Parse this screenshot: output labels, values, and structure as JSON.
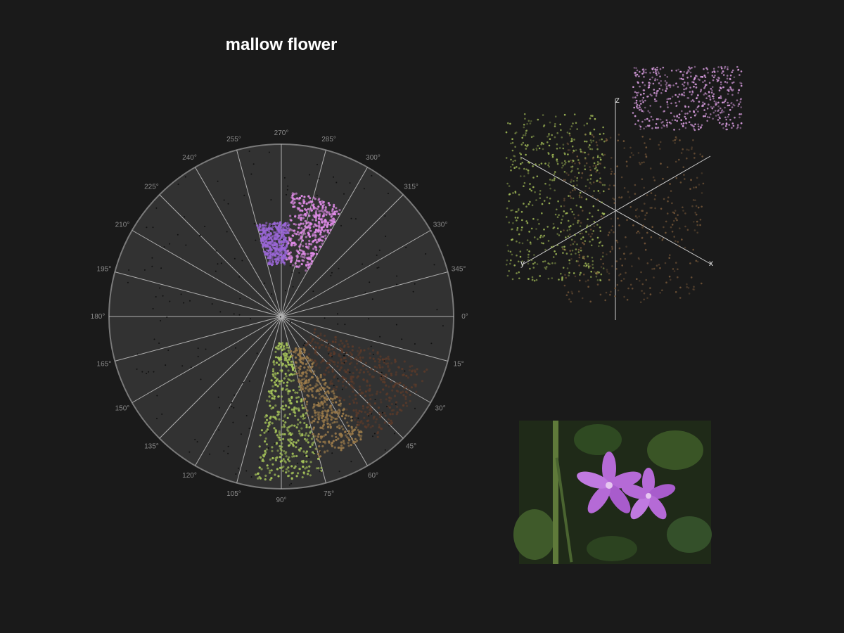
{
  "title": "mallow flower",
  "chart_data": [
    {
      "type": "scatter",
      "subtype": "polar-hue",
      "title": "mallow flower",
      "angle_ticks": [
        "0°",
        "15°",
        "30°",
        "45°",
        "60°",
        "75°",
        "90°",
        "105°",
        "120°",
        "135°",
        "150°",
        "165°",
        "180°",
        "195°",
        "210°",
        "225°",
        "240°",
        "255°",
        "270°",
        "285°",
        "300°",
        "315°",
        "330°",
        "345°"
      ],
      "angle_direction": "clockwise",
      "clusters": [
        {
          "hue_deg_from": 275,
          "hue_deg_to": 300,
          "radius_from": 0.3,
          "radius_to": 0.72,
          "color": "#e08ce8"
        },
        {
          "hue_deg_from": 255,
          "hue_deg_to": 275,
          "radius_from": 0.3,
          "radius_to": 0.55,
          "color": "#9a66d6"
        },
        {
          "hue_deg_from": 75,
          "hue_deg_to": 100,
          "radius_from": 0.15,
          "radius_to": 0.95,
          "color": "#a6c45a"
        },
        {
          "hue_deg_from": 55,
          "hue_deg_to": 75,
          "radius_from": 0.2,
          "radius_to": 0.85,
          "color": "#9a7a4a"
        },
        {
          "hue_deg_from": 20,
          "hue_deg_to": 55,
          "radius_from": 0.2,
          "radius_to": 0.9,
          "color": "#5a3a2a"
        }
      ],
      "grid": true
    },
    {
      "type": "scatter",
      "subtype": "3d-color-space",
      "axis_labels": {
        "x": "x",
        "y": "y",
        "z": "z"
      },
      "clusters": [
        {
          "color": "#e6a6ee",
          "label_region": "pink-purple, top"
        },
        {
          "color": "#a8c25a",
          "label_region": "green, left"
        },
        {
          "color": "#7a5a3a",
          "label_region": "brown, center"
        }
      ]
    }
  ],
  "image": {
    "subject": "mallow flower photo",
    "colors": {
      "petal": "#b56ad6",
      "leaf": "#3f5a2a",
      "background": "#1f2a18"
    }
  }
}
